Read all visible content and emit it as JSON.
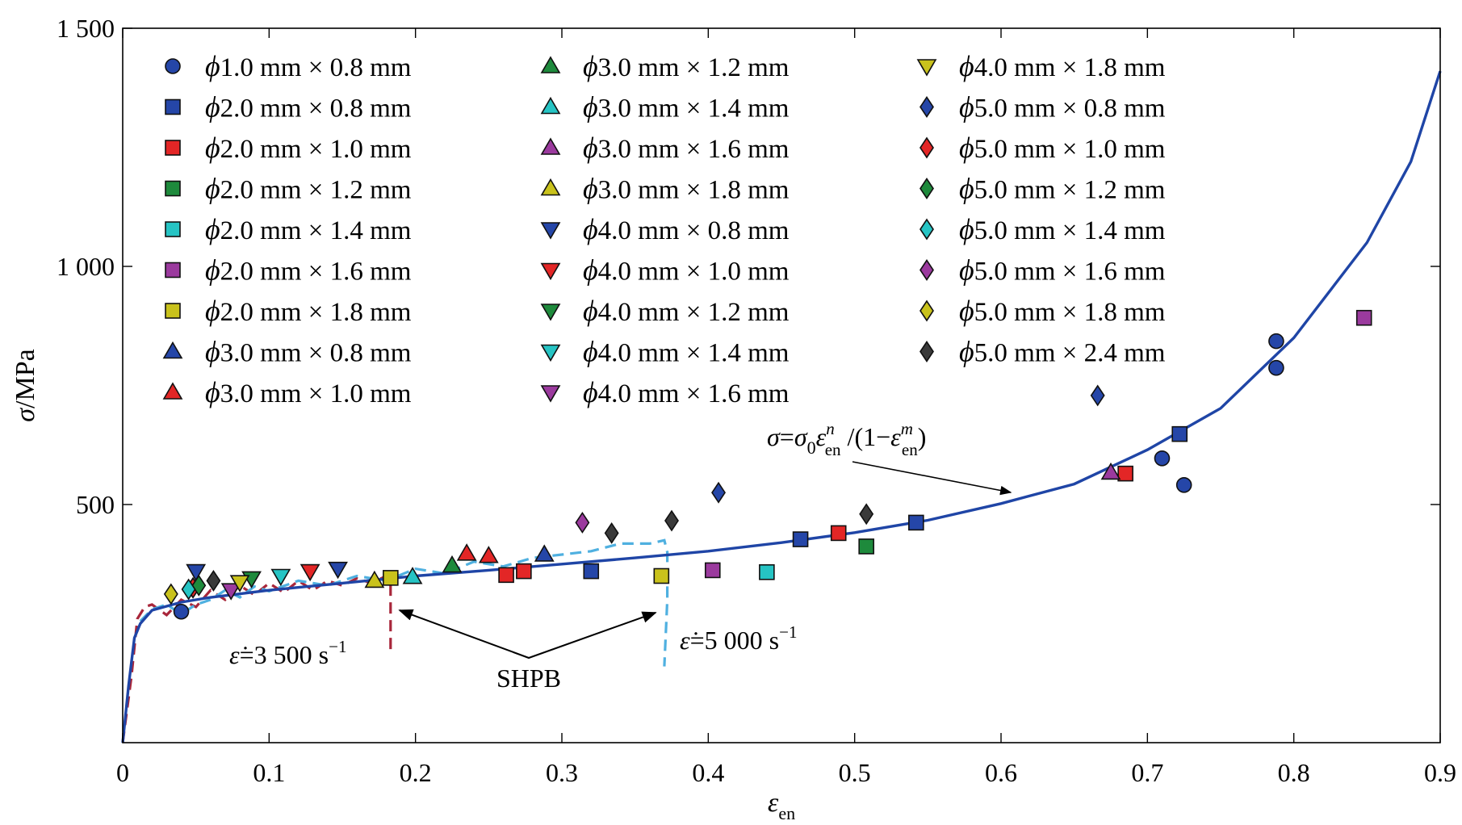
{
  "chart_data": {
    "type": "scatter",
    "xlim": [
      0,
      0.9
    ],
    "ylim": [
      0,
      1500
    ],
    "xticks": [
      {
        "v": 0,
        "label": "0"
      },
      {
        "v": 0.1,
        "label": "0.1"
      },
      {
        "v": 0.2,
        "label": "0.2"
      },
      {
        "v": 0.3,
        "label": "0.3"
      },
      {
        "v": 0.4,
        "label": "0.4"
      },
      {
        "v": 0.5,
        "label": "0.5"
      },
      {
        "v": 0.6,
        "label": "0.6"
      },
      {
        "v": 0.7,
        "label": "0.7"
      },
      {
        "v": 0.8,
        "label": "0.8"
      },
      {
        "v": 0.9,
        "label": "0.9"
      }
    ],
    "yticks": [
      {
        "v": 500,
        "label": "500"
      },
      {
        "v": 1000,
        "label": "1 000"
      },
      {
        "v": 1500,
        "label": "1 500"
      }
    ],
    "xlabel": {
      "main": "ε",
      "sub": "en"
    },
    "ylabel": "σ/MPa",
    "legend_placement": "top-left (3 columns)",
    "series": [
      {
        "name": "1.0 mm × 0.8 mm",
        "marker": "circle",
        "color": "#2546a8",
        "points": [
          [
            0.04,
            275
          ],
          [
            0.71,
            597
          ],
          [
            0.725,
            541
          ],
          [
            0.788,
            843
          ],
          [
            0.788,
            787
          ]
        ]
      },
      {
        "name": "2.0 mm × 0.8 mm",
        "marker": "square",
        "color": "#2546a8",
        "points": [
          [
            0.32,
            360
          ],
          [
            0.463,
            427
          ],
          [
            0.542,
            462
          ],
          [
            0.722,
            648
          ]
        ]
      },
      {
        "name": "2.0 mm × 1.0 mm",
        "marker": "square",
        "color": "#e32626",
        "points": [
          [
            0.262,
            352
          ],
          [
            0.274,
            360
          ],
          [
            0.489,
            440
          ],
          [
            0.685,
            565
          ]
        ]
      },
      {
        "name": "2.0 mm × 1.2 mm",
        "marker": "square",
        "color": "#1e8a3c",
        "points": [
          [
            0.508,
            412
          ]
        ]
      },
      {
        "name": "2.0 mm × 1.4 mm",
        "marker": "square",
        "color": "#26c4c4",
        "points": [
          [
            0.44,
            358
          ]
        ]
      },
      {
        "name": "2.0 mm × 1.6 mm",
        "marker": "square",
        "color": "#9b3a9e",
        "points": [
          [
            0.403,
            362
          ],
          [
            0.848,
            892
          ]
        ]
      },
      {
        "name": "2.0 mm × 1.8 mm",
        "marker": "square",
        "color": "#c9c21c",
        "points": [
          [
            0.183,
            346
          ],
          [
            0.368,
            350
          ]
        ]
      },
      {
        "name": "3.0 mm × 0.8 mm",
        "marker": "triangle-up",
        "color": "#2546a8",
        "points": [
          [
            0.288,
            395
          ]
        ]
      },
      {
        "name": "3.0 mm × 1.0 mm",
        "marker": "triangle-up",
        "color": "#e32626",
        "points": [
          [
            0.235,
            397
          ],
          [
            0.25,
            392
          ]
        ]
      },
      {
        "name": "3.0 mm × 1.2 mm",
        "marker": "triangle-up",
        "color": "#1e8a3c",
        "points": [
          [
            0.225,
            372
          ]
        ]
      },
      {
        "name": "3.0 mm × 1.4 mm",
        "marker": "triangle-up",
        "color": "#26c4c4",
        "points": [
          [
            0.198,
            348
          ]
        ]
      },
      {
        "name": "3.0 mm × 1.6 mm",
        "marker": "triangle-up",
        "color": "#9b3a9e",
        "points": [
          [
            0.675,
            567
          ]
        ]
      },
      {
        "name": "3.0 mm × 1.8 mm",
        "marker": "triangle-up",
        "color": "#c9c21c",
        "points": [
          [
            0.172,
            340
          ]
        ]
      },
      {
        "name": "4.0 mm × 0.8 mm",
        "marker": "triangle-down",
        "color": "#2546a8",
        "points": [
          [
            0.05,
            360
          ],
          [
            0.147,
            365
          ]
        ]
      },
      {
        "name": "4.0 mm × 1.0 mm",
        "marker": "triangle-down",
        "color": "#e32626",
        "points": [
          [
            0.128,
            360
          ]
        ]
      },
      {
        "name": "4.0 mm × 1.2 mm",
        "marker": "triangle-down",
        "color": "#1e8a3c",
        "points": [
          [
            0.088,
            345
          ]
        ]
      },
      {
        "name": "4.0 mm × 1.4 mm",
        "marker": "triangle-down",
        "color": "#26c4c4",
        "points": [
          [
            0.108,
            350
          ]
        ]
      },
      {
        "name": "4.0 mm × 1.6 mm",
        "marker": "triangle-down",
        "color": "#9b3a9e",
        "points": [
          [
            0.074,
            320
          ]
        ]
      },
      {
        "name": "4.0 mm × 1.8 mm",
        "marker": "triangle-down",
        "color": "#c9c21c",
        "points": [
          [
            0.08,
            337
          ]
        ]
      },
      {
        "name": "5.0 mm × 0.8 mm",
        "marker": "diamond",
        "color": "#2546a8",
        "points": [
          [
            0.407,
            525
          ],
          [
            0.666,
            729
          ]
        ]
      },
      {
        "name": "5.0 mm × 1.0 mm",
        "marker": "diamond",
        "color": "#e32626",
        "points": [
          [
            0.048,
            325
          ]
        ]
      },
      {
        "name": "5.0 mm × 1.2 mm",
        "marker": "diamond",
        "color": "#1e8a3c",
        "points": [
          [
            0.052,
            330
          ]
        ]
      },
      {
        "name": "5.0 mm × 1.4 mm",
        "marker": "diamond",
        "color": "#26c4c4",
        "points": [
          [
            0.045,
            322
          ]
        ]
      },
      {
        "name": "5.0 mm × 1.6 mm",
        "marker": "diamond",
        "color": "#9b3a9e",
        "points": [
          [
            0.314,
            462
          ]
        ]
      },
      {
        "name": "5.0 mm × 1.8 mm",
        "marker": "diamond",
        "color": "#c9c21c",
        "points": [
          [
            0.033,
            312
          ]
        ]
      },
      {
        "name": "5.0 mm × 2.4 mm",
        "marker": "diamond",
        "color": "#3a3a3a",
        "points": [
          [
            0.334,
            440
          ],
          [
            0.375,
            466
          ],
          [
            0.508,
            480
          ],
          [
            0.062,
            340
          ]
        ]
      }
    ],
    "legend_prefix": "ϕ",
    "fit_curve": {
      "label": "σ=σ0ε^n_en /(1−ε^m_en)",
      "color": "#1f45a6",
      "points": [
        [
          0,
          0
        ],
        [
          0.004,
          120
        ],
        [
          0.008,
          220
        ],
        [
          0.012,
          250
        ],
        [
          0.02,
          278
        ],
        [
          0.04,
          295
        ],
        [
          0.06,
          305
        ],
        [
          0.1,
          320
        ],
        [
          0.15,
          335
        ],
        [
          0.2,
          350
        ],
        [
          0.25,
          362
        ],
        [
          0.3,
          375
        ],
        [
          0.35,
          388
        ],
        [
          0.4,
          402
        ],
        [
          0.45,
          420
        ],
        [
          0.5,
          441
        ],
        [
          0.55,
          467
        ],
        [
          0.6,
          502
        ],
        [
          0.65,
          543
        ],
        [
          0.7,
          615
        ],
        [
          0.75,
          702
        ],
        [
          0.8,
          850
        ],
        [
          0.85,
          1050
        ],
        [
          0.88,
          1220
        ],
        [
          0.9,
          1410
        ]
      ]
    },
    "shpb_curves": [
      {
        "label": "ε̇=3 500 s⁻¹",
        "color": "#a8263a",
        "points": [
          [
            0.0,
            0
          ],
          [
            0.006,
            140
          ],
          [
            0.01,
            260
          ],
          [
            0.015,
            285
          ],
          [
            0.02,
            290
          ],
          [
            0.03,
            268
          ],
          [
            0.04,
            300
          ],
          [
            0.05,
            285
          ],
          [
            0.06,
            320
          ],
          [
            0.07,
            300
          ],
          [
            0.08,
            330
          ],
          [
            0.09,
            310
          ],
          [
            0.1,
            335
          ],
          [
            0.11,
            315
          ],
          [
            0.12,
            340
          ],
          [
            0.13,
            320
          ],
          [
            0.14,
            340
          ],
          [
            0.15,
            330
          ],
          [
            0.16,
            345
          ],
          [
            0.17,
            335
          ],
          [
            0.18,
            350
          ],
          [
            0.183,
            345
          ],
          [
            0.183,
            290
          ],
          [
            0.183,
            185
          ]
        ]
      },
      {
        "label": "ε̇=5 000 s⁻¹",
        "color": "#4fb0e0",
        "points": [
          [
            0.012,
            255
          ],
          [
            0.02,
            280
          ],
          [
            0.03,
            290
          ],
          [
            0.04,
            270
          ],
          [
            0.05,
            290
          ],
          [
            0.06,
            300
          ],
          [
            0.07,
            320
          ],
          [
            0.08,
            305
          ],
          [
            0.09,
            328
          ],
          [
            0.1,
            318
          ],
          [
            0.12,
            340
          ],
          [
            0.14,
            330
          ],
          [
            0.16,
            350
          ],
          [
            0.18,
            340
          ],
          [
            0.2,
            365
          ],
          [
            0.22,
            355
          ],
          [
            0.24,
            380
          ],
          [
            0.26,
            370
          ],
          [
            0.28,
            388
          ],
          [
            0.3,
            395
          ],
          [
            0.32,
            402
          ],
          [
            0.34,
            418
          ],
          [
            0.36,
            418
          ],
          [
            0.37,
            425
          ],
          [
            0.372,
            400
          ],
          [
            0.372,
            300
          ],
          [
            0.37,
            160
          ]
        ]
      }
    ],
    "annotations": {
      "shpb": "SHPB",
      "rate_unit": "s",
      "rate_exp": "−1"
    }
  },
  "labels": {
    "rate1_num": "=3 500 ",
    "rate2_num": "=5 000 ",
    "rate_sym": "ε̇",
    "shpb": "SHPB",
    "eq_sigma": "σ",
    "eq_sigma0": "σ",
    "eq_sub0": "0",
    "eq_eps": "ε",
    "eq_n": "n",
    "eq_en": "en",
    "eq_m": "m",
    "eq_eq": "=",
    "eq_div": " /(1−",
    "eq_close": ")"
  }
}
